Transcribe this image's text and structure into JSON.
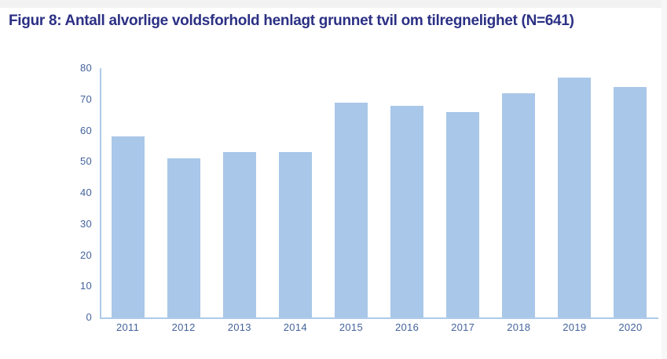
{
  "page": {
    "background": "#ffffff",
    "top_strip_color": "#f2f2f3",
    "right_strip_color": "#f7f7f8"
  },
  "figure": {
    "title": "Figur 8: Antall alvorlige voldsforhold henlagt grunnet tvil om tilregnelighet (N=641)",
    "title_color": "#2b3084"
  },
  "chart_data": {
    "type": "bar",
    "title": "Figur 8: Antall alvorlige voldsforhold henlagt grunnet tvil om tilregnelighet (N=641)",
    "categories": [
      "2011",
      "2012",
      "2013",
      "2014",
      "2015",
      "2016",
      "2017",
      "2018",
      "2019",
      "2020"
    ],
    "values": [
      58,
      51,
      53,
      53,
      69,
      68,
      66,
      72,
      77,
      74
    ],
    "total_n": 641,
    "xlabel": "",
    "ylabel": "",
    "ylim": [
      0,
      80
    ],
    "ytick_step": 10,
    "yticks": [
      0,
      10,
      20,
      30,
      40,
      50,
      60,
      70,
      80
    ],
    "grid": false,
    "legend": false,
    "bar_color": "#a9c7e8",
    "axis_line_color": "#aecbea",
    "tick_label_color": "#44639c"
  }
}
